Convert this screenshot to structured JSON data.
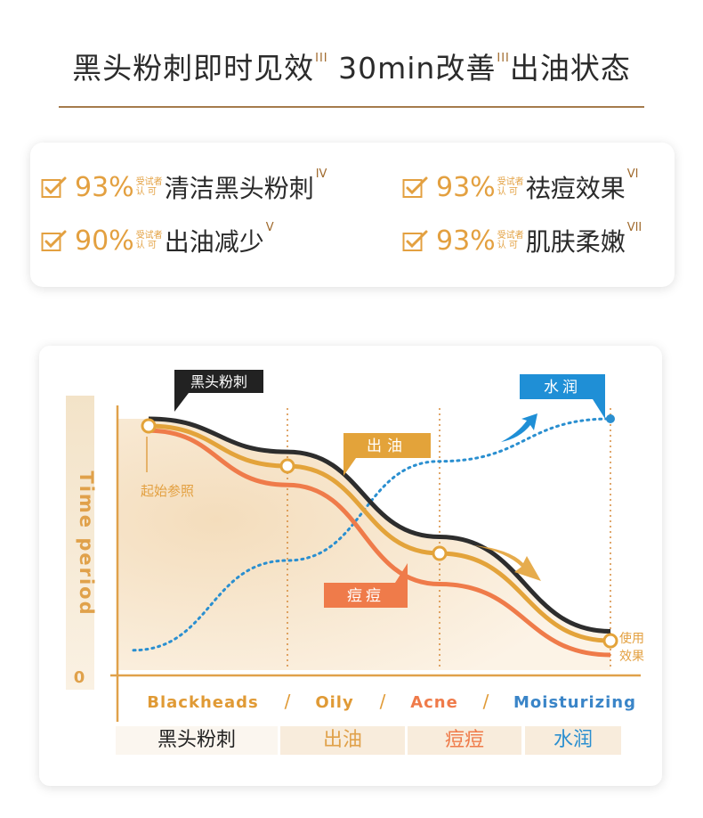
{
  "header": {
    "title_part1": "黑头粉刺即时见效",
    "title_sup1": "III",
    "title_part2": " 30min改善",
    "title_sup2": "III",
    "title_part3": "出油状态"
  },
  "claims": [
    {
      "percent": "93%",
      "note_line1": "受试者",
      "note_line2": "认 可",
      "text": "清洁黑头粉刺",
      "ref": "IV"
    },
    {
      "percent": "93%",
      "note_line1": "受试者",
      "note_line2": "认 可",
      "text": "祛痘效果",
      "ref": "VI"
    },
    {
      "percent": "90%",
      "note_line1": "受试者",
      "note_line2": "认 可",
      "text": "出油减少",
      "ref": "V"
    },
    {
      "percent": "93%",
      "note_line1": "受试者",
      "note_line2": "认 可",
      "text": "肌肤柔嫩",
      "ref": "VII"
    }
  ],
  "chart_data": {
    "type": "line",
    "ylabel": "Time period",
    "y_origin_label": "0",
    "categories": [
      "Blackheads",
      "Oily",
      "Acne",
      "Moisturizing"
    ],
    "category_separator": "/",
    "bottom_labels": [
      "黑头粉刺",
      "出油",
      "痘痘",
      "水润"
    ],
    "start_annotation": "起始参照",
    "end_annotation": [
      "使用",
      "效果"
    ],
    "series": [
      {
        "name": "黑头粉刺",
        "color": "#2d2d2d",
        "trend": "decreasing",
        "values": [
          1.0,
          0.86,
          0.5,
          0.1
        ]
      },
      {
        "name": "出油",
        "color": "#e3a33a",
        "trend": "decreasing",
        "values": [
          0.97,
          0.8,
          0.43,
          0.06
        ]
      },
      {
        "name": "痘痘",
        "color": "#ef7b4a",
        "trend": "decreasing",
        "values": [
          0.95,
          0.72,
          0.3,
          0.0
        ]
      },
      {
        "name": "水润",
        "color": "#2a8fd0",
        "trend": "increasing",
        "style": "dotted",
        "values": [
          0.02,
          0.4,
          0.82,
          1.0
        ]
      }
    ],
    "colors": {
      "axis": "#e0a14a",
      "category_text": "#e09a35",
      "acne_text": "#ef7b4a",
      "moist_text": "#3a85c8"
    }
  }
}
